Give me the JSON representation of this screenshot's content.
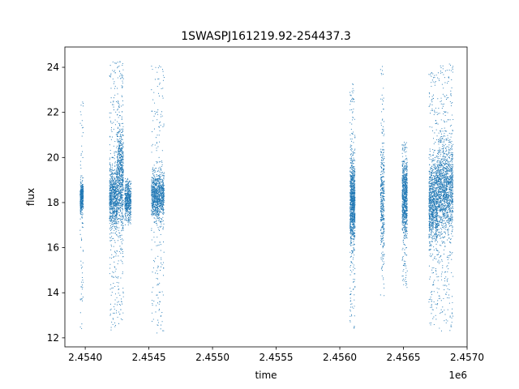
{
  "chart_data": {
    "type": "scatter",
    "title": "1SWASPJ161219.92-254437.3",
    "xlabel": "time",
    "ylabel": "flux",
    "x_offset_label": "1e6",
    "xlim": [
      2453840,
      2457000
    ],
    "ylim": [
      11.6,
      24.9
    ],
    "xticks": [
      2454000,
      2454500,
      2455000,
      2455500,
      2456000,
      2456500,
      2457000
    ],
    "xtick_labels": [
      "2.4540",
      "2.4545",
      "2.4550",
      "2.4555",
      "2.4560",
      "2.4565",
      "2.4570"
    ],
    "yticks": [
      12,
      14,
      16,
      18,
      20,
      22,
      24
    ],
    "ytick_labels": [
      "12",
      "14",
      "16",
      "18",
      "20",
      "22",
      "24"
    ],
    "grid": false,
    "legend": "none",
    "point_color": "#1f77b4",
    "clusters": [
      {
        "x_start": 2453960,
        "x_end": 2453985,
        "y_center": 18.2,
        "spread": 0.35,
        "y_min": 12.4,
        "y_max": 22.7,
        "weight": 0.6
      },
      {
        "x_start": 2454190,
        "x_end": 2454250,
        "y_center": 18.2,
        "spread": 0.7,
        "y_min": 12.3,
        "y_max": 24.3,
        "weight": 1.2
      },
      {
        "x_start": 2454250,
        "x_end": 2454300,
        "y_center": 19.2,
        "spread": 1.2,
        "y_min": 12.4,
        "y_max": 24.3,
        "weight": 1.2
      },
      {
        "x_start": 2454310,
        "x_end": 2454360,
        "y_center": 18.1,
        "spread": 0.35,
        "y_min": 17.0,
        "y_max": 19.1,
        "weight": 0.7
      },
      {
        "x_start": 2454520,
        "x_end": 2454620,
        "y_center": 18.3,
        "spread": 0.5,
        "y_min": 12.2,
        "y_max": 24.2,
        "weight": 1.6
      },
      {
        "x_start": 2456080,
        "x_end": 2456120,
        "y_center": 18.0,
        "spread": 0.9,
        "y_min": 12.4,
        "y_max": 23.3,
        "weight": 1.5
      },
      {
        "x_start": 2456320,
        "x_end": 2456350,
        "y_center": 18.0,
        "spread": 1.4,
        "y_min": 13.8,
        "y_max": 24.3,
        "weight": 0.6
      },
      {
        "x_start": 2456490,
        "x_end": 2456530,
        "y_center": 18.2,
        "spread": 0.8,
        "y_min": 14.2,
        "y_max": 20.7,
        "weight": 1.2
      },
      {
        "x_start": 2456700,
        "x_end": 2456770,
        "y_center": 18.0,
        "spread": 0.9,
        "y_min": 12.5,
        "y_max": 23.8,
        "weight": 1.5
      },
      {
        "x_start": 2456770,
        "x_end": 2456890,
        "y_center": 18.6,
        "spread": 1.0,
        "y_min": 12.3,
        "y_max": 24.2,
        "weight": 2.2
      }
    ]
  }
}
